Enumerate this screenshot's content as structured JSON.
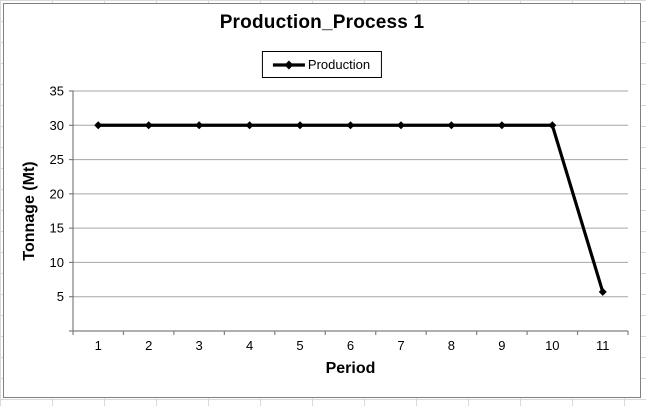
{
  "chart_data": {
    "type": "line",
    "title": "Production_Process 1",
    "xlabel": "Period",
    "ylabel": "Tonnage (Mt)",
    "categories": [
      1,
      2,
      3,
      4,
      5,
      6,
      7,
      8,
      9,
      10,
      11
    ],
    "series": [
      {
        "name": "Production",
        "values": [
          30,
          30,
          30,
          30,
          30,
          30,
          30,
          30,
          30,
          30,
          5.7
        ],
        "color": "#000000",
        "marker": "diamond"
      }
    ],
    "ylim": [
      0,
      35
    ],
    "ytick_step": 5,
    "yticks_labeled": [
      5,
      10,
      15,
      20,
      25,
      30,
      35
    ],
    "grid": true,
    "legend_position": "top-center",
    "colors": {
      "gridline": "#a6a6a6",
      "axis": "#808080",
      "text": "#000000",
      "chart_border": "#808080",
      "spreadsheet_grid": "#d9d9d9"
    }
  }
}
